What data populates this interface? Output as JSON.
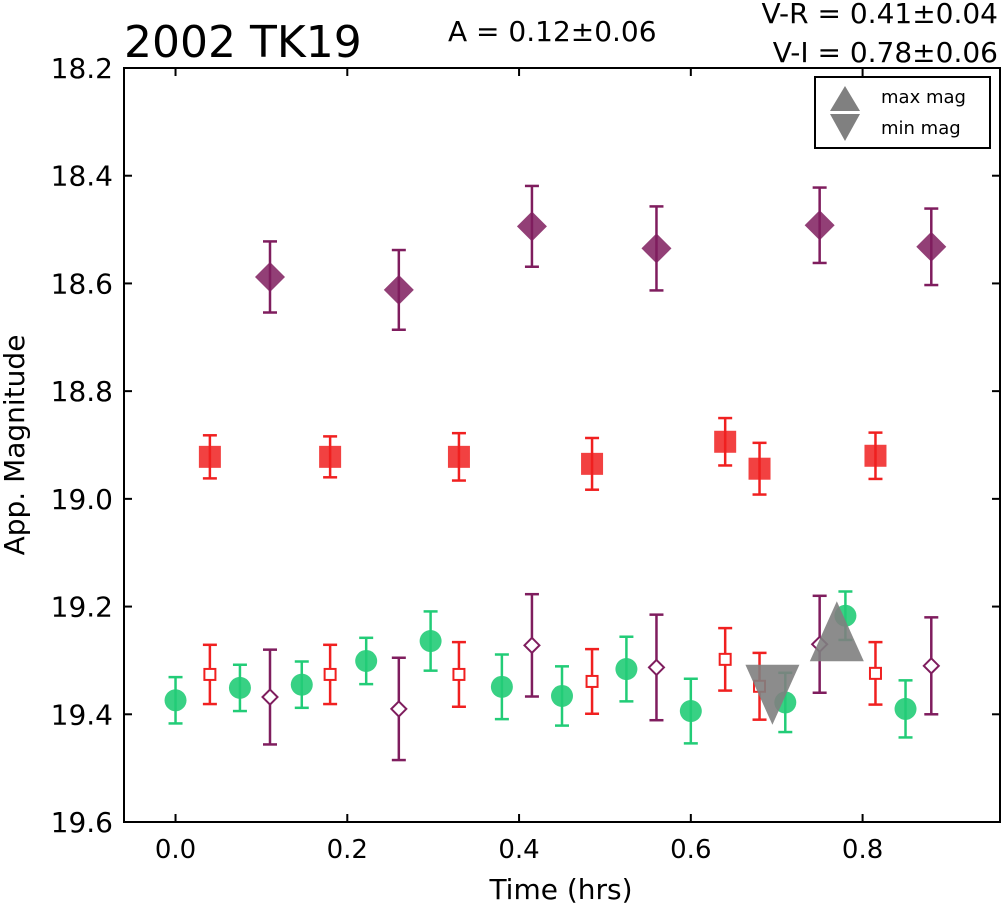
{
  "header": {
    "title": "2002 TK19",
    "amplitude": "A  = 0.12±0.06",
    "color_vr": "V-R = 0.41±0.04",
    "color_vi": "V-I  = 0.78±0.06"
  },
  "chart_data": {
    "type": "scatter",
    "title": "2002 TK19",
    "xlabel": "Time (hrs)",
    "ylabel": "App. Magnitude",
    "xlim": [
      -0.06,
      0.96
    ],
    "ylim": [
      19.6,
      18.2
    ],
    "y_inverted": true,
    "xticks": [
      0.0,
      0.2,
      0.4,
      0.6,
      0.8
    ],
    "xtick_labels": [
      "0.0",
      "0.2",
      "0.4",
      "0.6",
      "0.8"
    ],
    "yticks": [
      18.2,
      18.4,
      18.6,
      18.8,
      19.0,
      19.2,
      19.4,
      19.6
    ],
    "ytick_labels": [
      "18.2",
      "18.4",
      "18.6",
      "18.8",
      "19.0",
      "19.2",
      "19.4",
      "19.6"
    ],
    "legend": {
      "placement": "top-right",
      "entries": [
        "max mag",
        "min mag"
      ]
    },
    "series": [
      {
        "marker": "diamond-filled",
        "color": "#7f1d5e",
        "x": [
          0.11,
          0.26,
          0.415,
          0.56,
          0.75,
          0.88
        ],
        "y": [
          18.588,
          18.612,
          18.494,
          18.535,
          18.492,
          18.532
        ],
        "err": [
          0.066,
          0.074,
          0.075,
          0.078,
          0.07,
          0.071
        ]
      },
      {
        "marker": "square-filled",
        "color": "#f02020",
        "x": [
          0.04,
          0.18,
          0.33,
          0.485,
          0.64,
          0.68,
          0.815
        ],
        "y": [
          18.922,
          18.922,
          18.922,
          18.935,
          18.894,
          18.944,
          18.92
        ],
        "err": [
          0.04,
          0.038,
          0.044,
          0.048,
          0.044,
          0.048,
          0.043
        ]
      },
      {
        "marker": "circle-filled",
        "color": "#22cc77",
        "x": [
          0.0,
          0.075,
          0.147,
          0.222,
          0.297,
          0.38,
          0.45,
          0.525,
          0.6,
          0.71,
          0.78,
          0.85
        ],
        "y": [
          19.374,
          19.351,
          19.345,
          19.301,
          19.264,
          19.349,
          19.366,
          19.316,
          19.394,
          19.378,
          19.217,
          19.39
        ],
        "err": [
          0.043,
          0.043,
          0.043,
          0.043,
          0.055,
          0.06,
          0.055,
          0.06,
          0.06,
          0.055,
          0.045,
          0.053
        ]
      },
      {
        "marker": "square-open",
        "color": "#f02020",
        "x": [
          0.04,
          0.18,
          0.33,
          0.485,
          0.64,
          0.68,
          0.815
        ],
        "y": [
          19.326,
          19.326,
          19.326,
          19.339,
          19.298,
          19.348,
          19.324
        ],
        "err": [
          0.055,
          0.055,
          0.06,
          0.06,
          0.058,
          0.062,
          0.058
        ]
      },
      {
        "marker": "diamond-open",
        "color": "#7f1d5e",
        "x": [
          0.11,
          0.26,
          0.415,
          0.56,
          0.75,
          0.88
        ],
        "y": [
          19.368,
          19.39,
          19.272,
          19.313,
          19.27,
          19.31
        ],
        "err": [
          0.088,
          0.095,
          0.095,
          0.098,
          0.09,
          0.09
        ]
      },
      {
        "marker": "triangle-up-large",
        "color": "#808080",
        "x": [
          0.77
        ],
        "y": [
          19.27
        ]
      },
      {
        "marker": "triangle-down-large",
        "color": "#808080",
        "x": [
          0.695
        ],
        "y": [
          19.36
        ]
      }
    ]
  }
}
